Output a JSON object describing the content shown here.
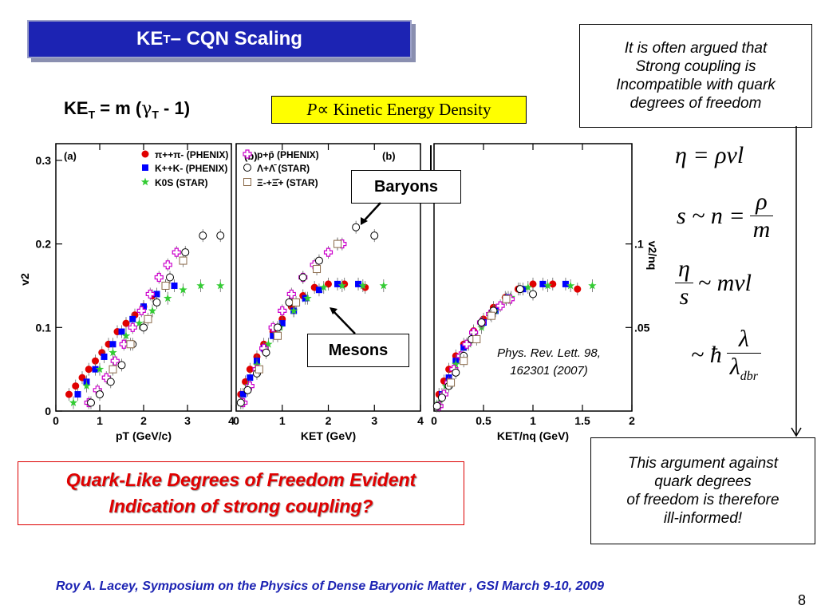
{
  "slide": {
    "title_main": "KE",
    "title_sub": "T",
    "title_rest": " – CQN Scaling",
    "formula_main": "KE",
    "formula_sub": "T",
    "formula_eq": " = m (",
    "formula_gamma": "γ",
    "formula_gamma_sub": "T",
    "formula_end": " - 1)",
    "pressure_P": "P",
    "pressure_text": " ∝ Kinetic Energy Density",
    "argue_lines": [
      "It is often argued that",
      "Strong coupling is",
      "Incompatible with quark",
      "degrees of freedom"
    ],
    "ill_lines": [
      "This argument against",
      "quark degrees",
      "of freedom is therefore",
      "ill-informed!"
    ],
    "quark_lines": [
      "Quark-Like Degrees of Freedom Evident",
      "Indication of strong coupling?"
    ],
    "baryons_label": "Baryons",
    "mesons_label": "Mesons",
    "citation_lines": [
      "Phys. Rev. Lett. 98,",
      "162301 (2007)"
    ],
    "footer": "Roy A. Lacey,  Symposium on the  Physics of Dense Baryonic Matter ,  GSI  March 9-10,  2009",
    "slide_number": "8",
    "eq1": "η = ρvl",
    "eq2_left": "s ~ n =",
    "eq2_num": "ρ",
    "eq2_den": "m",
    "eq3_num": "η",
    "eq3_den": "s",
    "eq3_right": "~ mvl",
    "eq4_left": "~ ħ",
    "eq4_num": "λ",
    "eq4_den": "λ",
    "eq4_den_sub": "dbr",
    "colors": {
      "title_bg": "#1c23b3",
      "highlight": "#ffff00",
      "accent_red": "#e00000"
    }
  },
  "chart_data": [
    {
      "type": "scatter",
      "panel_label": "(a)",
      "xlabel": "pT (GeV/c)",
      "ylabel": "v2",
      "xlim": [
        0,
        4
      ],
      "ylim": [
        0,
        0.32
      ],
      "xticks": [
        "0",
        "1",
        "2",
        "3",
        "4"
      ],
      "yticks": [
        "0",
        "0.1",
        "0.2",
        "0.3"
      ],
      "legend": [
        "π++π- (PHENIX)",
        "K++K- (PHENIX)",
        "K0S (STAR)",
        "p+p̄ (PHENIX)",
        "Λ+Λ̄ (STAR)",
        "Ξ-+Ξ̄+ (STAR)"
      ],
      "series": [
        {
          "name": "π++π- (PHENIX)",
          "marker": "circle-filled",
          "color": "#e00000",
          "x": [
            0.3,
            0.45,
            0.6,
            0.75,
            0.9,
            1.05,
            1.2,
            1.4,
            1.6,
            1.8,
            2.0,
            2.2,
            2.5
          ],
          "y": [
            0.02,
            0.03,
            0.04,
            0.05,
            0.06,
            0.07,
            0.08,
            0.095,
            0.105,
            0.115,
            0.125,
            0.138,
            0.15
          ]
        },
        {
          "name": "K++K- (PHENIX)",
          "marker": "square-filled",
          "color": "#0000ff",
          "x": [
            0.5,
            0.7,
            0.9,
            1.1,
            1.3,
            1.5,
            1.75,
            2.0,
            2.3,
            2.7
          ],
          "y": [
            0.02,
            0.035,
            0.05,
            0.065,
            0.08,
            0.095,
            0.11,
            0.125,
            0.14,
            0.15
          ]
        },
        {
          "name": "K0S (STAR)",
          "marker": "star",
          "color": "#33cc33",
          "x": [
            0.4,
            0.7,
            1.0,
            1.3,
            1.6,
            1.9,
            2.2,
            2.55,
            2.9,
            3.3,
            3.75
          ],
          "y": [
            0.01,
            0.03,
            0.05,
            0.07,
            0.09,
            0.105,
            0.12,
            0.135,
            0.145,
            0.15,
            0.15
          ]
        },
        {
          "name": "p+p̄ (PHENIX)",
          "marker": "cross-open",
          "color": "#cc00cc",
          "x": [
            0.75,
            0.95,
            1.15,
            1.35,
            1.55,
            1.75,
            1.95,
            2.15,
            2.35,
            2.55,
            2.75
          ],
          "y": [
            0.01,
            0.025,
            0.04,
            0.06,
            0.08,
            0.1,
            0.12,
            0.14,
            0.16,
            0.175,
            0.19
          ]
        },
        {
          "name": "Λ+Λ̄ (STAR)",
          "marker": "circle-open",
          "color": "#000000",
          "x": [
            0.8,
            1.0,
            1.25,
            1.5,
            1.75,
            2.0,
            2.3,
            2.6,
            2.95,
            3.35,
            3.75
          ],
          "y": [
            0.01,
            0.02,
            0.035,
            0.055,
            0.08,
            0.1,
            0.13,
            0.16,
            0.19,
            0.21,
            0.21
          ]
        },
        {
          "name": "Ξ-+Ξ̄+ (STAR)",
          "marker": "square-open",
          "color": "#8b6b4b",
          "x": [
            1.3,
            1.7,
            2.1,
            2.5,
            2.9
          ],
          "y": [
            0.05,
            0.08,
            0.11,
            0.15,
            0.18
          ]
        }
      ]
    },
    {
      "type": "scatter",
      "panel_label": "(b)",
      "xlabel": "KET (GeV)",
      "xlim": [
        0,
        4
      ],
      "ylim": [
        0,
        0.32
      ],
      "xticks": [
        "0",
        "1",
        "2",
        "3",
        "4"
      ],
      "series": [
        {
          "name": "π++π- (PHENIX)",
          "marker": "circle-filled",
          "color": "#e00000",
          "x": [
            0.1,
            0.2,
            0.3,
            0.45,
            0.6,
            0.8,
            1.0,
            1.2,
            1.45,
            1.7,
            2.0,
            2.35,
            2.8
          ],
          "y": [
            0.02,
            0.035,
            0.05,
            0.065,
            0.08,
            0.095,
            0.11,
            0.125,
            0.138,
            0.148,
            0.152,
            0.152,
            0.148
          ]
        },
        {
          "name": "K++K- (PHENIX)",
          "marker": "square-filled",
          "color": "#0000ff",
          "x": [
            0.15,
            0.3,
            0.45,
            0.6,
            0.8,
            1.0,
            1.25,
            1.5,
            1.8,
            2.2,
            2.65
          ],
          "y": [
            0.02,
            0.04,
            0.06,
            0.075,
            0.09,
            0.105,
            0.12,
            0.135,
            0.145,
            0.152,
            0.152
          ]
        },
        {
          "name": "K0S (STAR)",
          "marker": "star",
          "color": "#33cc33",
          "x": [
            0.1,
            0.25,
            0.45,
            0.7,
            0.95,
            1.25,
            1.55,
            1.9,
            2.3,
            2.75,
            3.2
          ],
          "y": [
            0.01,
            0.03,
            0.055,
            0.08,
            0.1,
            0.12,
            0.135,
            0.148,
            0.15,
            0.15,
            0.15
          ]
        },
        {
          "name": "p+p̄ (PHENIX)",
          "marker": "cross-open",
          "color": "#cc00cc",
          "x": [
            0.15,
            0.3,
            0.45,
            0.6,
            0.8,
            1.0,
            1.2,
            1.45,
            1.7,
            2.0,
            2.3
          ],
          "y": [
            0.01,
            0.03,
            0.05,
            0.075,
            0.1,
            0.12,
            0.14,
            0.16,
            0.175,
            0.19,
            0.2
          ]
        },
        {
          "name": "Λ+Λ̄ (STAR)",
          "marker": "circle-open",
          "color": "#000000",
          "x": [
            0.1,
            0.25,
            0.45,
            0.65,
            0.9,
            1.15,
            1.45,
            1.8,
            2.2,
            2.6,
            3.0
          ],
          "y": [
            0.01,
            0.025,
            0.045,
            0.07,
            0.1,
            0.13,
            0.16,
            0.18,
            0.2,
            0.22,
            0.21
          ]
        },
        {
          "name": "Ξ-+Ξ̄+ (STAR)",
          "marker": "square-open",
          "color": "#8b6b4b",
          "x": [
            0.5,
            0.9,
            1.3,
            1.75,
            2.2
          ],
          "y": [
            0.05,
            0.09,
            0.13,
            0.17,
            0.2
          ]
        }
      ]
    },
    {
      "type": "scatter",
      "panel_label": "",
      "xlabel": "KET/nq (GeV)",
      "ylabel": "v2/nq",
      "xlim": [
        0,
        2
      ],
      "ylim": [
        0,
        0.16
      ],
      "xticks": [
        "0",
        "0.5",
        "1",
        "1.5",
        "2"
      ],
      "yticks": [
        ".05",
        ".1"
      ],
      "series": [
        {
          "name": "π++π- (PHENIX)",
          "marker": "circle-filled",
          "color": "#e00000",
          "x": [
            0.05,
            0.1,
            0.15,
            0.22,
            0.3,
            0.4,
            0.5,
            0.6,
            0.72,
            0.85,
            1.0,
            1.2,
            1.45
          ],
          "y": [
            0.01,
            0.018,
            0.025,
            0.033,
            0.04,
            0.048,
            0.055,
            0.062,
            0.068,
            0.073,
            0.076,
            0.076,
            0.073
          ]
        },
        {
          "name": "K++K- (PHENIX)",
          "marker": "square-filled",
          "color": "#0000ff",
          "x": [
            0.08,
            0.15,
            0.22,
            0.3,
            0.4,
            0.5,
            0.62,
            0.75,
            0.9,
            1.1,
            1.33
          ],
          "y": [
            0.01,
            0.02,
            0.03,
            0.038,
            0.045,
            0.053,
            0.06,
            0.068,
            0.073,
            0.076,
            0.076
          ]
        },
        {
          "name": "K0S (STAR)",
          "marker": "star",
          "color": "#33cc33",
          "x": [
            0.05,
            0.12,
            0.22,
            0.35,
            0.48,
            0.62,
            0.78,
            0.95,
            1.15,
            1.38,
            1.6
          ],
          "y": [
            0.005,
            0.015,
            0.028,
            0.04,
            0.05,
            0.06,
            0.068,
            0.074,
            0.075,
            0.075,
            0.075
          ]
        },
        {
          "name": "p+p̄ (PHENIX)",
          "marker": "cross-open",
          "color": "#cc00cc",
          "x": [
            0.05,
            0.1,
            0.15,
            0.2,
            0.27,
            0.33,
            0.4,
            0.48,
            0.57,
            0.67,
            0.77
          ],
          "y": [
            0.003,
            0.01,
            0.017,
            0.025,
            0.033,
            0.04,
            0.047,
            0.053,
            0.058,
            0.063,
            0.067
          ]
        },
        {
          "name": "Λ+Λ̄ (STAR)",
          "marker": "circle-open",
          "color": "#000000",
          "x": [
            0.03,
            0.08,
            0.15,
            0.22,
            0.3,
            0.38,
            0.48,
            0.6,
            0.73,
            0.87,
            1.0
          ],
          "y": [
            0.003,
            0.008,
            0.015,
            0.023,
            0.033,
            0.043,
            0.053,
            0.06,
            0.067,
            0.073,
            0.07
          ]
        },
        {
          "name": "Ξ-+Ξ̄+ (STAR)",
          "marker": "square-open",
          "color": "#8b6b4b",
          "x": [
            0.17,
            0.3,
            0.43,
            0.58,
            0.73
          ],
          "y": [
            0.017,
            0.03,
            0.043,
            0.057,
            0.067
          ]
        }
      ]
    }
  ]
}
